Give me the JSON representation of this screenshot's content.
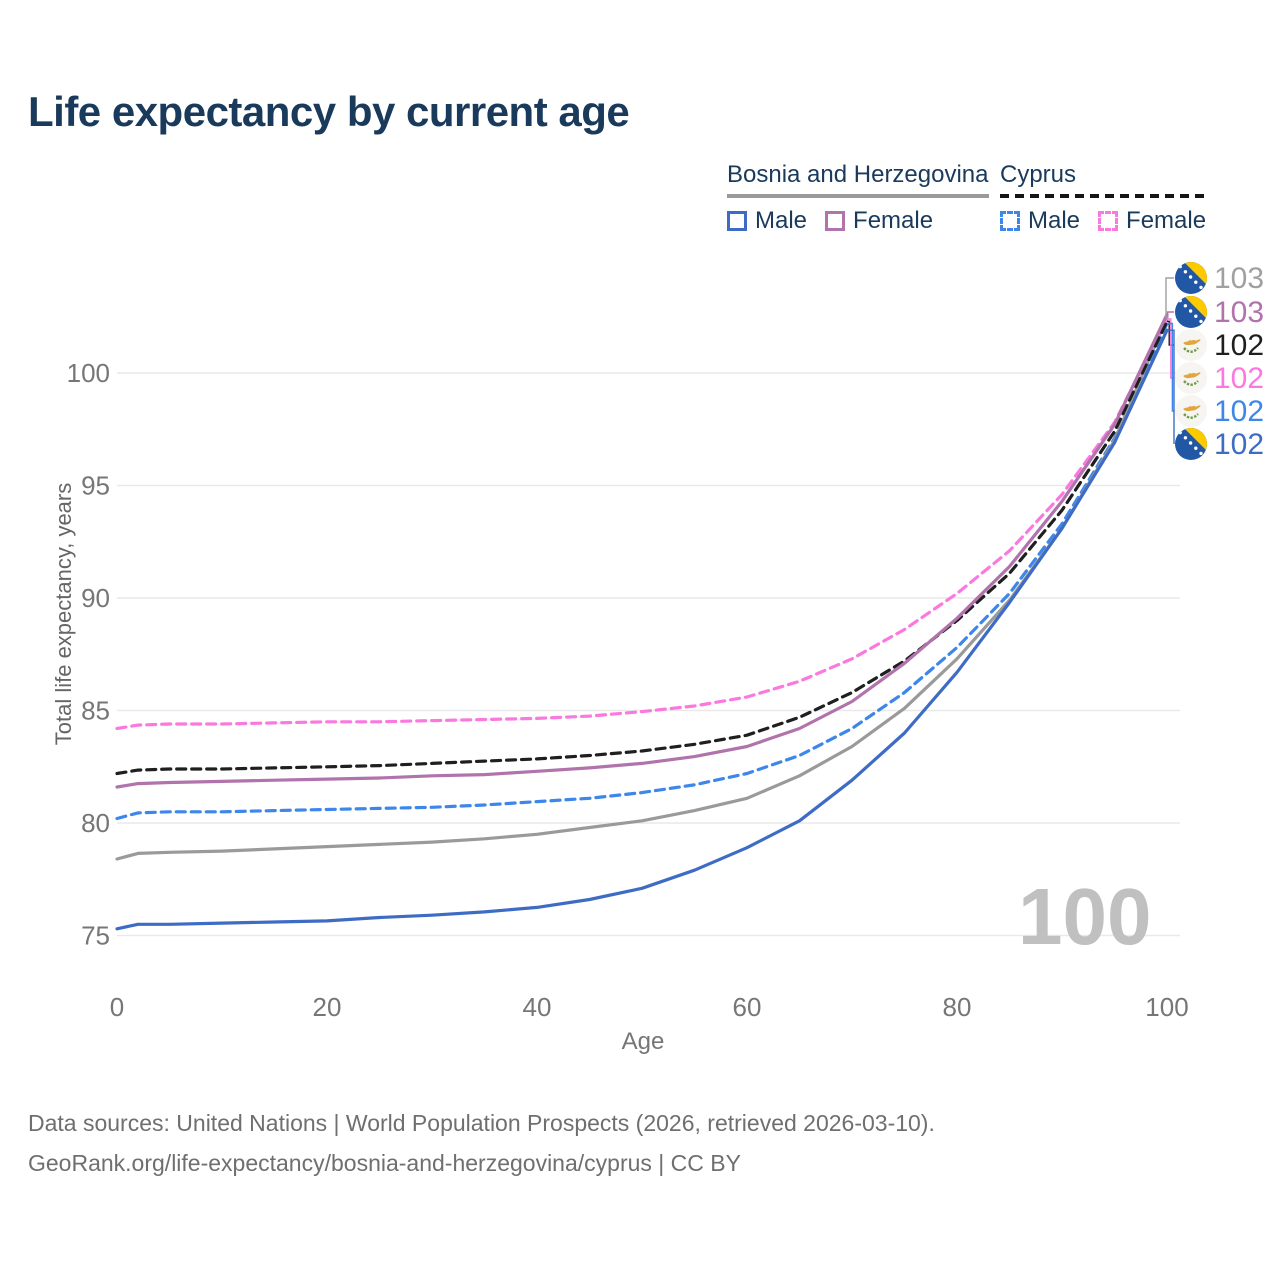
{
  "title": "Life expectancy by current age",
  "legend": {
    "groups": [
      {
        "name": "Bosnia and Herzegovina",
        "line_style": "solid",
        "underline_color": "#9a9a9a",
        "items": [
          {
            "label": "Male",
            "color": "#3e6cc4",
            "dash": false
          },
          {
            "label": "Female",
            "color": "#b173ac",
            "dash": false
          }
        ]
      },
      {
        "name": "Cyprus",
        "line_style": "dashed",
        "underline_color": "#151515",
        "items": [
          {
            "label": "Male",
            "color": "#3d87ea",
            "dash": true
          },
          {
            "label": "Female",
            "color": "#fb79df",
            "dash": true
          }
        ]
      }
    ]
  },
  "chart_data": {
    "type": "line",
    "title": "Life expectancy by current age",
    "xlabel": "Age",
    "ylabel": "Total life expectancy, years",
    "x_ticks": [
      0,
      20,
      40,
      60,
      80,
      100
    ],
    "y_ticks": [
      75,
      80,
      85,
      90,
      95,
      100
    ],
    "xlim": [
      0,
      100
    ],
    "ylim": [
      74,
      103.5
    ],
    "grid": "horizontal-only",
    "x": [
      0,
      2,
      5,
      10,
      15,
      20,
      25,
      30,
      35,
      40,
      45,
      50,
      55,
      60,
      65,
      70,
      75,
      80,
      85,
      90,
      95,
      100
    ],
    "series": [
      {
        "id": "cyprus_male",
        "name": "Cyprus Male",
        "color": "#3d87ea",
        "dash": true,
        "values": [
          80.2,
          80.45,
          80.5,
          80.5,
          80.55,
          80.6,
          80.65,
          80.7,
          80.8,
          80.95,
          81.1,
          81.35,
          81.7,
          82.2,
          83.0,
          84.2,
          85.8,
          87.8,
          90.2,
          93.3,
          97.1,
          102.2
        ]
      },
      {
        "id": "bosnia_all",
        "name": "Bosnia and Herzegovina Total",
        "color": "#9a9a9a",
        "dash": false,
        "values": [
          78.4,
          78.65,
          78.7,
          78.75,
          78.85,
          78.95,
          79.05,
          79.15,
          79.3,
          79.5,
          79.8,
          80.1,
          80.55,
          81.1,
          82.1,
          83.4,
          85.1,
          87.3,
          89.9,
          93.1,
          97.0,
          102.5
        ]
      },
      {
        "id": "cyprus_female",
        "name": "Cyprus Female",
        "color": "#fb79df",
        "dash": true,
        "values": [
          84.2,
          84.35,
          84.4,
          84.4,
          84.45,
          84.5,
          84.5,
          84.55,
          84.6,
          84.65,
          84.75,
          84.95,
          85.2,
          85.6,
          86.3,
          87.3,
          88.6,
          90.2,
          92.1,
          94.6,
          97.8,
          102.4
        ]
      },
      {
        "id": "cyprus_all",
        "name": "Cyprus Total",
        "color": "#1f1f1f",
        "dash": true,
        "values": [
          82.2,
          82.35,
          82.4,
          82.4,
          82.45,
          82.5,
          82.55,
          82.65,
          82.75,
          82.85,
          83.0,
          83.2,
          83.5,
          83.9,
          84.7,
          85.8,
          87.2,
          89.0,
          91.1,
          93.9,
          97.4,
          102.3
        ]
      },
      {
        "id": "bosnia_female",
        "name": "Bosnia and Herzegovina Female",
        "color": "#b173ac",
        "dash": false,
        "values": [
          81.6,
          81.75,
          81.8,
          81.85,
          81.9,
          81.95,
          82.0,
          82.1,
          82.15,
          82.3,
          82.45,
          82.65,
          82.95,
          83.4,
          84.2,
          85.4,
          87.1,
          89.1,
          91.4,
          94.3,
          97.7,
          102.6
        ]
      },
      {
        "id": "bosnia_male",
        "name": "Bosnia and Herzegovina Male",
        "color": "#3e6cc4",
        "dash": false,
        "values": [
          75.3,
          75.5,
          75.5,
          75.55,
          75.6,
          75.65,
          75.8,
          75.9,
          76.05,
          76.25,
          76.6,
          77.1,
          77.9,
          78.9,
          80.1,
          81.9,
          84.0,
          86.7,
          89.8,
          93.1,
          96.9,
          101.9
        ]
      }
    ],
    "end_labels": [
      {
        "flag": "ba",
        "value": "103",
        "color": "#a0a0a0",
        "series": "bosnia_all"
      },
      {
        "flag": "ba",
        "value": "103",
        "color": "#b173ac",
        "series": "bosnia_female"
      },
      {
        "flag": "cy",
        "value": "102",
        "color": "#1f1f1f",
        "series": "cyprus_all"
      },
      {
        "flag": "cy",
        "value": "102",
        "color": "#fb79df",
        "series": "cyprus_female"
      },
      {
        "flag": "cy",
        "value": "102",
        "color": "#3d87ea",
        "series": "cyprus_male"
      },
      {
        "flag": "ba",
        "value": "102",
        "color": "#3e6cc4",
        "series": "bosnia_male"
      }
    ],
    "legend_position": "top-right"
  },
  "watermark": {
    "text": "100"
  },
  "footer": {
    "line1": "Data sources: United Nations | World Population Prospects (2026, retrieved 2026-03-10).",
    "line2": "GeoRank.org/life-expectancy/bosnia-and-herzegovina/cyprus | CC BY"
  }
}
